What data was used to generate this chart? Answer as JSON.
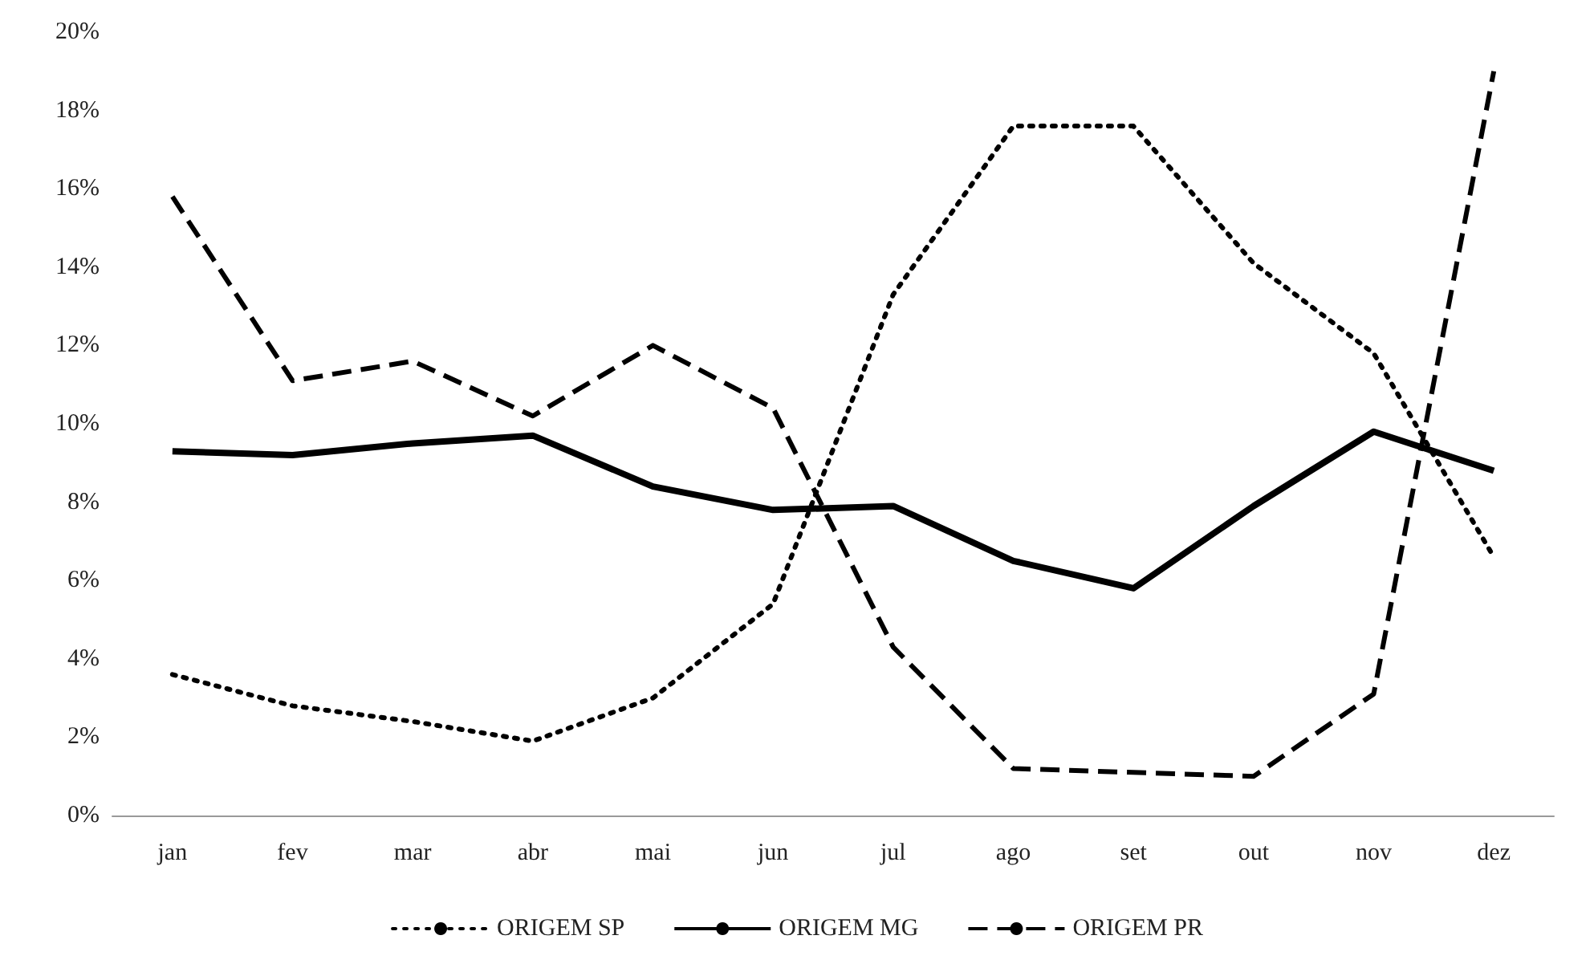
{
  "chart_data": {
    "type": "line",
    "categories": [
      "jan",
      "fev",
      "mar",
      "abr",
      "mai",
      "jun",
      "jul",
      "ago",
      "set",
      "out",
      "nov",
      "dez"
    ],
    "series": [
      {
        "name": "ORIGEM SP",
        "color": "#000000",
        "line_style": "dotted",
        "values": [
          3.6,
          2.8,
          2.4,
          1.9,
          3.0,
          5.4,
          13.3,
          17.6,
          17.6,
          14.1,
          11.8,
          6.6
        ]
      },
      {
        "name": "ORIGEM MG",
        "color": "#000000",
        "line_style": "solid",
        "values": [
          9.3,
          9.2,
          9.5,
          9.7,
          8.4,
          7.8,
          7.9,
          6.5,
          5.8,
          7.9,
          9.8,
          8.8
        ]
      },
      {
        "name": "ORIGEM PR",
        "color": "#000000",
        "line_style": "dashed",
        "values": [
          15.8,
          11.1,
          11.6,
          10.2,
          12.0,
          10.4,
          4.3,
          1.2,
          1.1,
          1.0,
          3.1,
          19.0
        ]
      }
    ],
    "ylim": [
      0,
      20
    ],
    "yticks": [
      {
        "value": 0,
        "label": "0%"
      },
      {
        "value": 2,
        "label": "2%"
      },
      {
        "value": 4,
        "label": "4%"
      },
      {
        "value": 6,
        "label": "6%"
      },
      {
        "value": 8,
        "label": "8%"
      },
      {
        "value": 10,
        "label": "10%"
      },
      {
        "value": 12,
        "label": "12%"
      },
      {
        "value": 14,
        "label": "14%"
      },
      {
        "value": 16,
        "label": "16%"
      },
      {
        "value": 18,
        "label": "18%"
      },
      {
        "value": 20,
        "label": "20%"
      }
    ],
    "legend": "bottom",
    "marker": "none"
  }
}
